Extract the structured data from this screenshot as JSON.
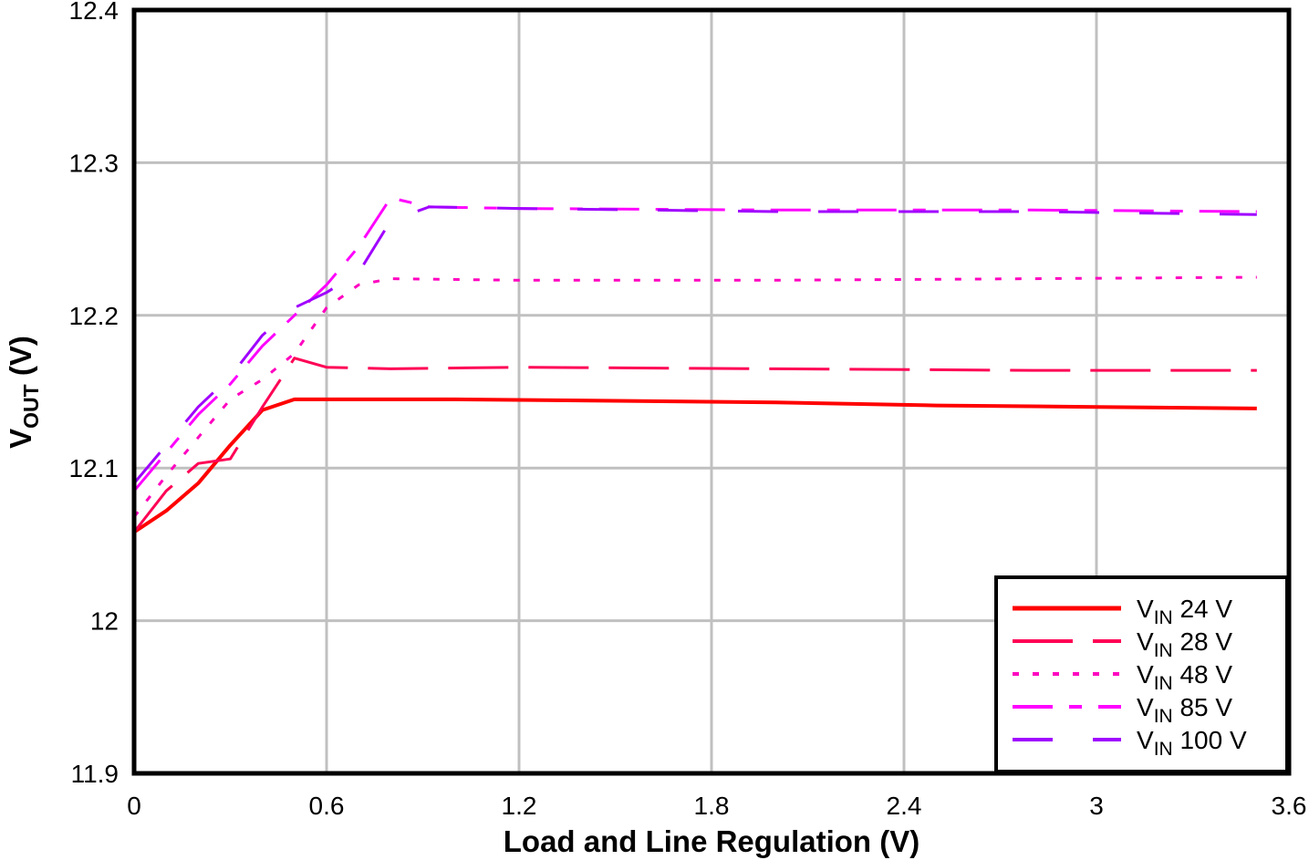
{
  "chart_data": {
    "type": "line",
    "title": "",
    "xlabel": "Load and Line Regulation (V)",
    "ylabel_main": "V",
    "ylabel_sub": "OUT",
    "ylabel_suffix": " (V)",
    "xlim": [
      0,
      3.6
    ],
    "ylim": [
      11.9,
      12.4
    ],
    "x_ticks": [
      "0",
      "0.6",
      "1.2",
      "1.8",
      "2.4",
      "3",
      "3.6"
    ],
    "y_ticks": [
      "12.4",
      "12.3",
      "12.2",
      "12.1",
      "12",
      "11.9"
    ],
    "grid": true,
    "legend_position": "lower right",
    "series": [
      {
        "name": "VIN 24 V",
        "label_main": "V",
        "label_sub": "IN",
        "label_rest": " 24 V",
        "color": "#ff0000",
        "dash": "",
        "width": 4,
        "x": [
          0,
          0.1,
          0.2,
          0.3,
          0.4,
          0.5,
          0.6,
          0.8,
          1.0,
          1.5,
          2.0,
          2.5,
          3.0,
          3.5
        ],
        "y": [
          12.058,
          12.072,
          12.09,
          12.115,
          12.138,
          12.145,
          12.145,
          12.145,
          12.145,
          12.144,
          12.143,
          12.141,
          12.14,
          12.139
        ]
      },
      {
        "name": "VIN 28 V",
        "label_main": "V",
        "label_sub": "IN",
        "label_rest": " 28 V",
        "color": "#ff0055",
        "dash": "66 22",
        "width": 3,
        "x": [
          0,
          0.1,
          0.2,
          0.3,
          0.4,
          0.5,
          0.6,
          0.8,
          1.2,
          2.0,
          2.8,
          3.5
        ],
        "y": [
          12.058,
          12.085,
          12.103,
          12.106,
          12.14,
          12.172,
          12.166,
          12.165,
          12.166,
          12.165,
          12.164,
          12.164
        ]
      },
      {
        "name": "VIN 48 V",
        "label_main": "V",
        "label_sub": "IN",
        "label_rest": " 48 V",
        "color": "#ff00c0",
        "dash": "7 15",
        "width": 3,
        "x": [
          0,
          0.1,
          0.2,
          0.3,
          0.4,
          0.5,
          0.6,
          0.7,
          0.8,
          1.2,
          2.0,
          2.8,
          3.5
        ],
        "y": [
          12.068,
          12.095,
          12.12,
          12.145,
          12.158,
          12.175,
          12.205,
          12.22,
          12.224,
          12.223,
          12.223,
          12.224,
          12.225
        ]
      },
      {
        "name": "VIN 85 V",
        "label_main": "V",
        "label_sub": "IN",
        "label_rest": " 85 V",
        "color": "#ff00ff",
        "dash": "44 18 14 18",
        "width": 3,
        "x": [
          0,
          0.1,
          0.2,
          0.3,
          0.4,
          0.5,
          0.6,
          0.7,
          0.8,
          0.92,
          1.2,
          2.0,
          2.8,
          3.5
        ],
        "y": [
          12.085,
          12.11,
          12.135,
          12.155,
          12.18,
          12.2,
          12.22,
          12.245,
          12.277,
          12.271,
          12.27,
          12.269,
          12.269,
          12.268
        ]
      },
      {
        "name": "VIN 100 V",
        "label_main": "V",
        "label_sub": "IN",
        "label_rest": " 100 V",
        "color": "#a000ff",
        "dash": "44 44",
        "width": 3,
        "x": [
          0,
          0.1,
          0.2,
          0.3,
          0.4,
          0.5,
          0.6,
          0.7,
          0.8,
          0.92,
          1.2,
          2.0,
          2.8,
          3.5
        ],
        "y": [
          12.09,
          12.115,
          12.14,
          12.16,
          12.187,
          12.205,
          12.215,
          12.228,
          12.262,
          12.271,
          12.27,
          12.268,
          12.268,
          12.266
        ]
      }
    ]
  },
  "colors": {
    "grid": "#c0c0c0",
    "frame": "#000000",
    "background": "#ffffff"
  }
}
